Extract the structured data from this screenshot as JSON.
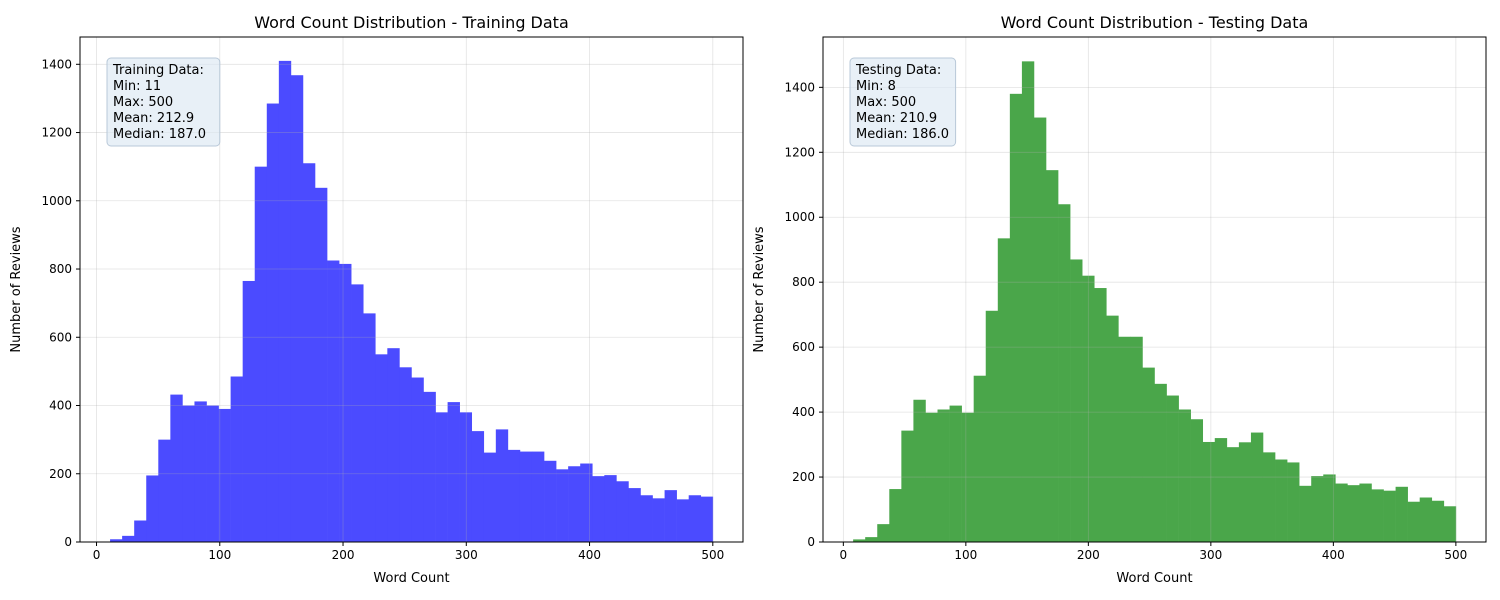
{
  "chart_data": [
    {
      "type": "bar",
      "subtype": "histogram",
      "title": "Word Count Distribution - Training Data",
      "xlabel": "Word Count",
      "ylabel": "Number of Reviews",
      "xlim": [
        -13.4,
        524.5
      ],
      "ylim": [
        0,
        1480
      ],
      "xticks": [
        0,
        100,
        200,
        300,
        400,
        500
      ],
      "yticks": [
        0,
        200,
        400,
        600,
        800,
        1000,
        1200,
        1400
      ],
      "grid": true,
      "color": "#4B4BFF",
      "bin_start": 11,
      "bin_width": 9.78,
      "values": [
        8,
        18,
        63,
        195,
        300,
        432,
        400,
        412,
        400,
        390,
        485,
        765,
        1100,
        1285,
        1410,
        1368,
        1110,
        1038,
        825,
        815,
        755,
        670,
        550,
        568,
        512,
        482,
        440,
        380,
        410,
        380,
        325,
        262,
        330,
        270,
        265,
        265,
        238,
        213,
        222,
        230,
        193,
        196,
        178,
        158,
        137,
        128,
        152,
        125,
        137,
        133
      ],
      "stats_box": {
        "title": "Training Data:",
        "lines": [
          "Min: 11",
          "Max: 500",
          "Mean: 212.9",
          "Median: 187.0"
        ]
      }
    },
    {
      "type": "bar",
      "subtype": "histogram",
      "title": "Word Count Distribution - Testing Data",
      "xlabel": "Word Count",
      "ylabel": "Number of Reviews",
      "xlim": [
        -16.6,
        524.6
      ],
      "ylim": [
        0,
        1555
      ],
      "xticks": [
        0,
        100,
        200,
        300,
        400,
        500
      ],
      "yticks": [
        0,
        200,
        400,
        600,
        800,
        1000,
        1200,
        1400
      ],
      "grid": true,
      "color": "#4AA64A",
      "bin_start": 8,
      "bin_width": 9.84,
      "values": [
        8,
        15,
        55,
        163,
        343,
        438,
        398,
        408,
        420,
        398,
        512,
        712,
        935,
        1380,
        1480,
        1307,
        1145,
        1040,
        870,
        820,
        782,
        697,
        632,
        632,
        537,
        487,
        451,
        408,
        378,
        308,
        320,
        292,
        307,
        337,
        276,
        254,
        245,
        173,
        203,
        208,
        180,
        175,
        180,
        162,
        158,
        170,
        124,
        137,
        127,
        110
      ],
      "stats_box": {
        "title": "Testing Data:",
        "lines": [
          "Min: 8",
          "Max: 500",
          "Mean: 210.9",
          "Median: 186.0"
        ]
      }
    }
  ]
}
